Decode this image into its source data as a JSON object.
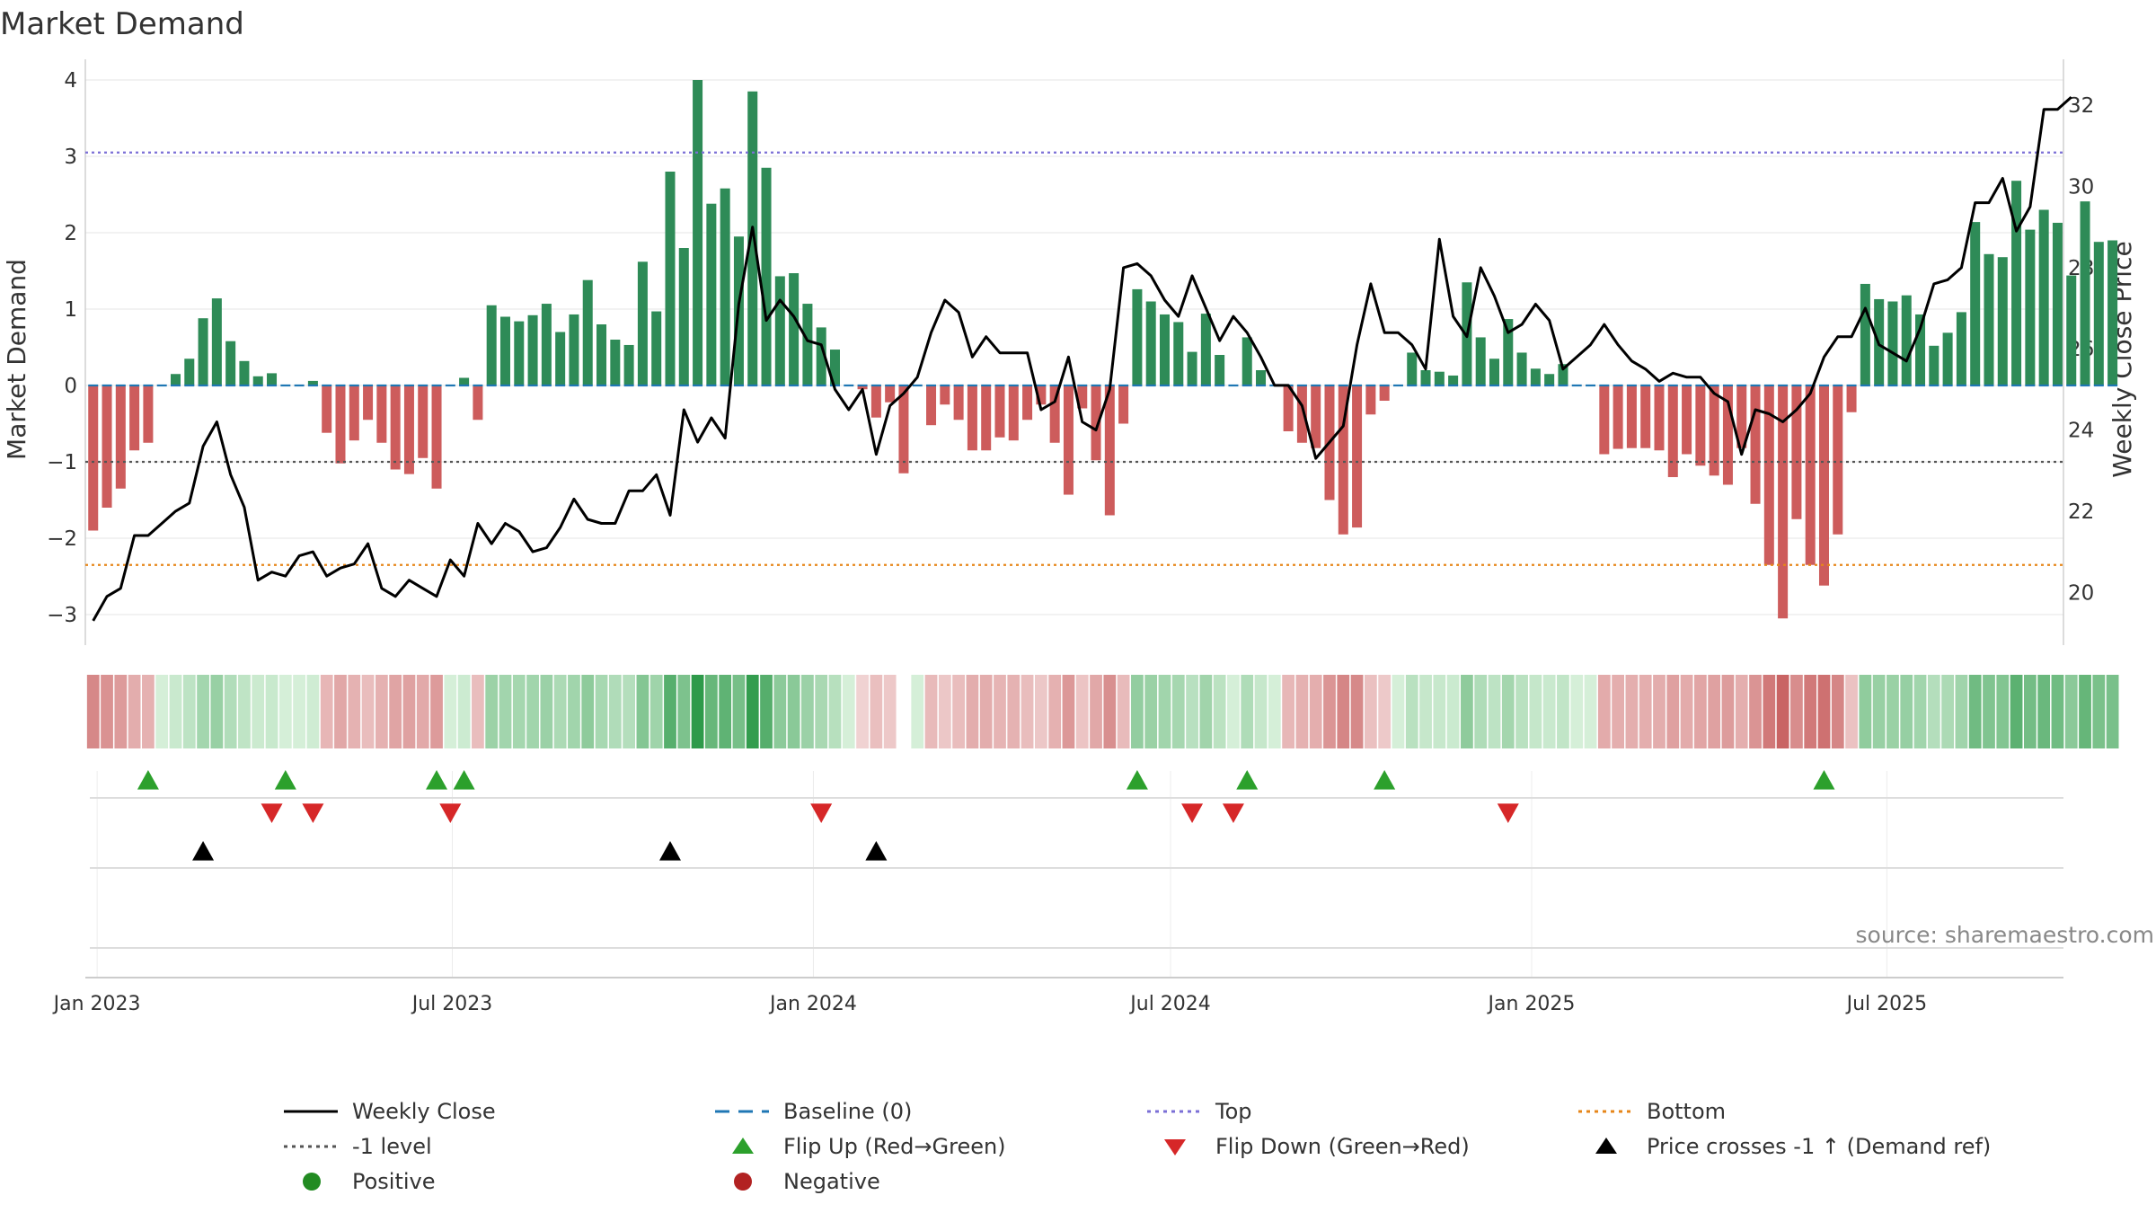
{
  "chart_data": {
    "type": "bar",
    "title": "Market Demand",
    "ylabel_left": "Market Demand",
    "ylabel_right": "Weekly Close Price",
    "source": "source: sharemaestro.com",
    "left_ylim": [
      -3.4,
      4.2
    ],
    "left_yticks": [
      -3,
      -2,
      -1,
      0,
      1,
      2,
      3,
      4
    ],
    "right_ylim": [
      18.7,
      33
    ],
    "right_yticks": [
      20,
      22,
      24,
      26,
      28,
      30,
      32
    ],
    "x_start": "2022-12-26",
    "x_end": "2025-09-29",
    "xticks": [
      {
        "date": "2023-01-01",
        "label": "Jan 2023"
      },
      {
        "date": "2023-07-01",
        "label": "Jul 2023"
      },
      {
        "date": "2024-01-01",
        "label": "Jan 2024"
      },
      {
        "date": "2024-07-01",
        "label": "Jul 2024"
      },
      {
        "date": "2025-01-01",
        "label": "Jan 2025"
      },
      {
        "date": "2025-07-01",
        "label": "Jul 2025"
      }
    ],
    "first_week": "2022-12-30",
    "reference_lines": {
      "baseline": 0,
      "top": 3.05,
      "bottom": -2.35,
      "minus_one": -1
    },
    "demand": [
      -1.9,
      -1.6,
      -1.35,
      -0.85,
      -0.75,
      0,
      0.15,
      0.35,
      0.88,
      1.14,
      0.58,
      0.32,
      0.12,
      0.16,
      0,
      0,
      0.06,
      -0.62,
      -1.02,
      -0.72,
      -0.45,
      -0.75,
      -1.1,
      -1.16,
      -0.95,
      -1.35,
      0,
      0.1,
      -0.45,
      1.05,
      0.9,
      0.84,
      0.92,
      1.07,
      0.7,
      0.93,
      1.38,
      0.8,
      0.6,
      0.53,
      1.62,
      0.97,
      2.8,
      1.8,
      4.0,
      2.38,
      2.58,
      1.95,
      3.85,
      2.85,
      1.43,
      1.47,
      1.07,
      0.76,
      0.47,
      0,
      -0.05,
      -0.42,
      -0.22,
      -1.15,
      0,
      -0.52,
      -0.25,
      -0.45,
      -0.85,
      -0.85,
      -0.68,
      -0.72,
      -0.45,
      -0.25,
      -0.75,
      -1.43,
      -0.3,
      -0.98,
      -1.7,
      -0.5,
      1.26,
      1.1,
      0.93,
      0.83,
      0.44,
      0.94,
      0.4,
      0,
      0.63,
      0.2,
      0,
      -0.6,
      -0.75,
      -0.82,
      -1.5,
      -1.95,
      -1.86,
      -0.38,
      -0.2,
      0,
      0.43,
      0.2,
      0.18,
      0.13,
      1.35,
      0.63,
      0.35,
      0.87,
      0.43,
      0.22,
      0.15,
      0.28,
      0,
      0,
      -0.9,
      -0.83,
      -0.82,
      -0.82,
      -0.85,
      -1.2,
      -0.9,
      -1.05,
      -1.18,
      -1.3,
      -0.82,
      -1.55,
      -2.35,
      -3.05,
      -1.75,
      -2.35,
      -2.62,
      -1.95,
      -0.35,
      1.33,
      1.13,
      1.1,
      1.18,
      0.93,
      0.52,
      0.69,
      0.96,
      2.14,
      1.72,
      1.68,
      2.68,
      2.04,
      2.3,
      2.13,
      1.44,
      2.41,
      1.88,
      1.9
    ],
    "price": [
      19.3,
      19.9,
      20.1,
      21.4,
      21.4,
      21.7,
      22.0,
      22.2,
      23.6,
      24.2,
      22.9,
      22.1,
      20.3,
      20.5,
      20.4,
      20.9,
      21.0,
      20.4,
      20.6,
      20.7,
      21.2,
      20.1,
      19.9,
      20.3,
      20.1,
      19.9,
      20.8,
      20.4,
      21.7,
      21.2,
      21.7,
      21.5,
      21.0,
      21.1,
      21.6,
      22.3,
      21.8,
      21.7,
      21.7,
      22.5,
      22.5,
      22.9,
      21.9,
      24.5,
      23.7,
      24.3,
      23.8,
      27.1,
      29.0,
      26.7,
      27.2,
      26.8,
      26.2,
      26.1,
      25.0,
      24.5,
      25.0,
      23.4,
      24.6,
      24.9,
      25.3,
      26.4,
      27.2,
      26.9,
      25.8,
      26.3,
      25.9,
      25.9,
      25.9,
      24.5,
      24.7,
      25.8,
      24.2,
      24.0,
      25.0,
      28.0,
      28.1,
      27.8,
      27.2,
      26.8,
      27.8,
      27.0,
      26.2,
      26.8,
      26.4,
      25.8,
      25.1,
      25.1,
      24.6,
      23.3,
      23.7,
      24.1,
      26.1,
      27.6,
      26.4,
      26.4,
      26.1,
      25.5,
      28.7,
      26.8,
      26.3,
      28.0,
      27.3,
      26.4,
      26.6,
      27.1,
      26.7,
      25.5,
      25.8,
      26.1,
      26.6,
      26.1,
      25.7,
      25.5,
      25.2,
      25.4,
      25.3,
      25.3,
      24.9,
      24.7,
      23.4,
      24.5,
      24.4,
      24.2,
      24.5,
      24.9,
      25.8,
      26.3,
      26.3,
      27.0,
      26.1,
      25.9,
      25.7,
      26.5,
      27.6,
      27.7,
      28.0,
      29.6,
      29.6,
      30.2,
      28.9,
      29.5,
      31.9,
      31.9,
      32.2
    ],
    "flip_up_weeks": [
      4,
      14,
      25,
      27,
      76,
      84,
      94,
      126
    ],
    "flip_down_weeks": [
      13,
      16,
      26,
      53,
      80,
      83,
      103
    ],
    "price_cross_weeks": [
      8,
      42,
      57
    ],
    "missing_strip_weeks": [
      59
    ],
    "legend": [
      {
        "key": "weekly_close",
        "label": "Weekly Close",
        "marker": "line-solid",
        "color": "#000000"
      },
      {
        "key": "baseline",
        "label": "Baseline (0)",
        "marker": "line-dashed",
        "color": "#1f77b4"
      },
      {
        "key": "top",
        "label": "Top",
        "marker": "line-dotted",
        "color": "#7b6fd6"
      },
      {
        "key": "bottom",
        "label": "Bottom",
        "marker": "line-dotted",
        "color": "#e6861a"
      },
      {
        "key": "minus_one",
        "label": "-1 level",
        "marker": "line-dotted",
        "color": "#555555"
      },
      {
        "key": "flip_up",
        "label": "Flip Up (Red→Green)",
        "marker": "triangle-up",
        "color": "#2ca02c"
      },
      {
        "key": "flip_down",
        "label": "Flip Down (Green→Red)",
        "marker": "triangle-down",
        "color": "#d62728"
      },
      {
        "key": "price_cross",
        "label": "Price crosses -1 ↑ (Demand ref)",
        "marker": "triangle-up",
        "color": "#000000"
      },
      {
        "key": "positive",
        "label": "Positive",
        "marker": "circle",
        "color": "#228b22"
      },
      {
        "key": "negative",
        "label": "Negative",
        "marker": "circle",
        "color": "#b22222"
      }
    ]
  },
  "colors": {
    "positive_bar": "#2e8b57",
    "negative_bar": "#cd5c5c",
    "price_line": "#000000",
    "grid": "#e6e6e6",
    "axis_text": "#333333",
    "source_text": "#888888",
    "flip_up": "#2ca02c",
    "flip_down": "#d62728",
    "price_cross": "#000000"
  }
}
